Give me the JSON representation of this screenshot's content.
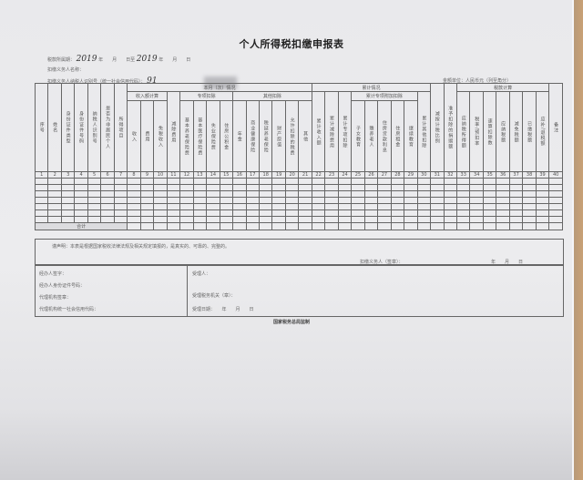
{
  "form": {
    "title": "个人所得税扣缴申报表",
    "period_label_start": "税款所属期：",
    "period_year_start": "2019",
    "period_mid": "年　　月　　日至",
    "period_year_end": "2019",
    "period_end": "年　　月　　日",
    "withholder_name_label": "扣缴义务人名称：",
    "withholder_id_label": "扣缴义务人纳税人识别号（统一社会信用代码）：",
    "withholder_id_value": "91",
    "currency_note": "金额单位：人民币元（列至角分）"
  },
  "table": {
    "groups": {
      "current": "本月（次）情况",
      "cumulative": "累计情况",
      "tax_calc": "税款计算",
      "income_calc": "收入额计算",
      "special_deduction": "专项扣除",
      "other_deduction": "其他扣除",
      "special_additional": "累计专项附加扣除"
    },
    "columns": [
      "序号",
      "姓名",
      "身份证件类型",
      "身份证件号码",
      "纳税人识别号",
      "是否为非居民个人",
      "所得项目",
      "收入",
      "费用",
      "免税收入",
      "减除费用",
      "基本养老保险费",
      "基本医疗保险费",
      "失业保险费",
      "住房公积金",
      "年金",
      "商业健康保险",
      "税延养老保险",
      "财产原值",
      "允许扣除的税费",
      "其他",
      "累计收入额",
      "累计减除费用",
      "累计专项扣除",
      "子女教育",
      "赡养老人",
      "住房贷款利息",
      "住房租金",
      "继续教育",
      "累计其他扣除",
      "减按计税比例",
      "准予扣除的捐赠额",
      "应纳税所得额",
      "税率/预扣率",
      "速算扣除数",
      "应纳税额",
      "减免税额",
      "已缴税额",
      "应补/退税额",
      "备注"
    ],
    "total_label": "合计"
  },
  "declaration": {
    "text": "谨声明：本表是根据国家税收法律法规及相关规定填报的，是真实的、可靠的、完整的。",
    "signer": "扣缴义务人（签章）：",
    "date": "年　　月　　日"
  },
  "agent": {
    "handler_sign": "经办人签字：",
    "handler_id": "经办人身份证件号码：",
    "agency_seal": "代理机构签章：",
    "agency_code": "代理机构统一社会信用代码："
  },
  "acceptance": {
    "acceptor": "受理人：",
    "tax_office": "受理税务机关（章）：",
    "date": "受理日期：　　年　　月　　日"
  },
  "footer": "国家税务总局监制"
}
